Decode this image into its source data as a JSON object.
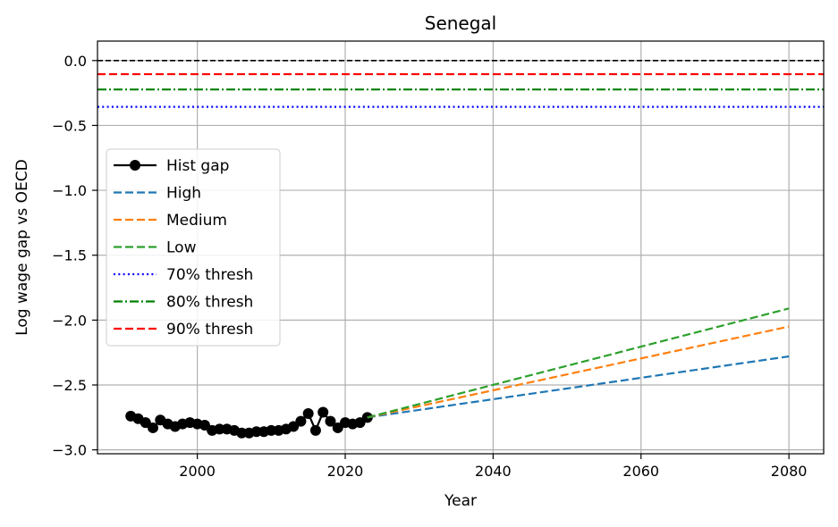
{
  "chart_data": {
    "type": "line",
    "title": "Senegal",
    "xlabel": "Year",
    "ylabel": "Log wage gap vs OECD",
    "xlim": [
      1986.5,
      2084.7
    ],
    "ylim": [
      -3.03,
      0.15
    ],
    "xticks": [
      2000,
      2020,
      2040,
      2060,
      2080
    ],
    "yticks": [
      0.0,
      -0.5,
      -1.0,
      -1.5,
      -2.0,
      -2.5,
      -3.0
    ],
    "xtick_labels": [
      "2000",
      "2020",
      "2040",
      "2060",
      "2080"
    ],
    "ytick_labels": [
      "0.0",
      "−0.5",
      "−1.0",
      "−1.5",
      "−2.0",
      "−2.5",
      "−3.0"
    ],
    "grid": true,
    "legend_position": "center-left",
    "reference_line": {
      "y": 0.0,
      "color": "#000000",
      "style": "dashed"
    },
    "series": [
      {
        "name": "Hist gap",
        "color": "#000000",
        "style": "solid-marker",
        "x": [
          1991,
          1992,
          1993,
          1994,
          1995,
          1996,
          1997,
          1998,
          1999,
          2000,
          2001,
          2002,
          2003,
          2004,
          2005,
          2006,
          2007,
          2008,
          2009,
          2010,
          2011,
          2012,
          2013,
          2014,
          2015,
          2016,
          2017,
          2018,
          2019,
          2020,
          2021,
          2022,
          2023
        ],
        "y": [
          -2.74,
          -2.76,
          -2.79,
          -2.83,
          -2.77,
          -2.8,
          -2.82,
          -2.8,
          -2.79,
          -2.8,
          -2.81,
          -2.85,
          -2.84,
          -2.84,
          -2.85,
          -2.87,
          -2.87,
          -2.86,
          -2.86,
          -2.85,
          -2.85,
          -2.84,
          -2.82,
          -2.78,
          -2.72,
          -2.85,
          -2.71,
          -2.78,
          -2.83,
          -2.79,
          -2.8,
          -2.79,
          -2.75
        ]
      },
      {
        "name": "High",
        "color": "#1f77b4",
        "style": "dashed",
        "x": [
          2023,
          2080
        ],
        "y": [
          -2.75,
          -2.28
        ]
      },
      {
        "name": "Medium",
        "color": "#ff7f0e",
        "style": "dashed",
        "x": [
          2023,
          2080
        ],
        "y": [
          -2.75,
          -2.05
        ]
      },
      {
        "name": "Low",
        "color": "#2ca02c",
        "style": "dashed",
        "x": [
          2023,
          2080
        ],
        "y": [
          -2.75,
          -1.91
        ]
      },
      {
        "name": "70% thresh",
        "color": "#0000ff",
        "style": "dotted",
        "y_const": -0.357
      },
      {
        "name": "80% thresh",
        "color": "#008000",
        "style": "dashdot",
        "y_const": -0.223
      },
      {
        "name": "90% thresh",
        "color": "#ff0000",
        "style": "dashed",
        "y_const": -0.105
      }
    ]
  }
}
